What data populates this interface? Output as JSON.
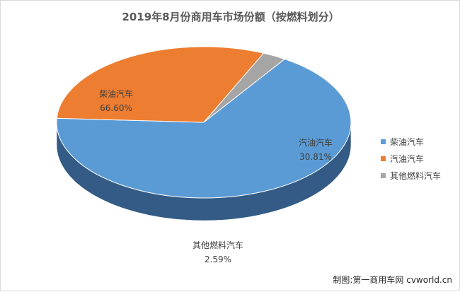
{
  "chart_data": {
    "type": "pie",
    "title": "2019年8月份商用车市场份额（按燃料划分）",
    "categories": [
      "柴油汽车",
      "汽油汽车",
      "其他燃料汽车"
    ],
    "values": [
      66.6,
      30.81,
      2.59
    ],
    "value_labels": [
      "66.60%",
      "30.81%",
      "2.59%"
    ],
    "colors": {
      "top": [
        "#5b9bd5",
        "#ed7d31",
        "#a5a5a5"
      ],
      "side": [
        "#335b85",
        "#703412",
        "#4d4d4d"
      ]
    },
    "legend_position": "right",
    "style": "3d"
  },
  "footer": {
    "credit": "制图:第一商用车网 cvworld.cn"
  }
}
